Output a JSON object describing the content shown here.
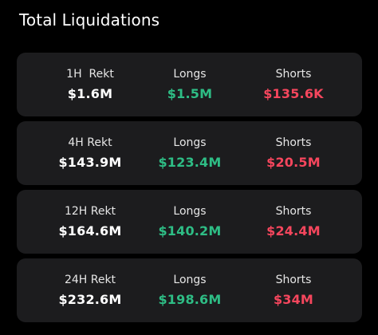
{
  "title": "Total Liquidations",
  "colors": {
    "background": "#000000",
    "card": "#1c1c1e",
    "longs": "#2ebd85",
    "shorts": "#f6465d"
  },
  "rows": [
    {
      "period_label": "1H  Rekt",
      "total": "$1.6M",
      "longs_label": "Longs",
      "longs": "$1.5M",
      "shorts_label": "Shorts",
      "shorts": "$135.6K"
    },
    {
      "period_label": "4H Rekt",
      "total": "$143.9M",
      "longs_label": "Longs",
      "longs": "$123.4M",
      "shorts_label": "Shorts",
      "shorts": "$20.5M"
    },
    {
      "period_label": "12H Rekt",
      "total": "$164.6M",
      "longs_label": "Longs",
      "longs": "$140.2M",
      "shorts_label": "Shorts",
      "shorts": "$24.4M"
    },
    {
      "period_label": "24H Rekt",
      "total": "$232.6M",
      "longs_label": "Longs",
      "longs": "$198.6M",
      "shorts_label": "Shorts",
      "shorts": "$34M"
    }
  ]
}
